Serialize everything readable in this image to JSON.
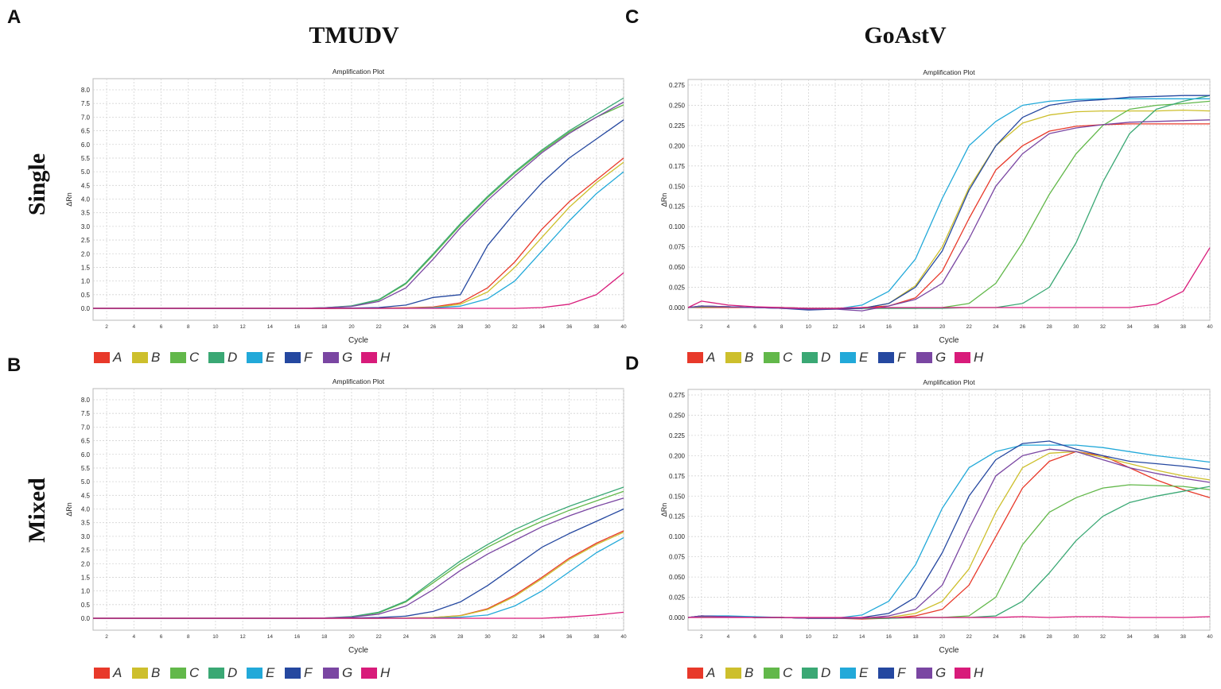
{
  "figure": {
    "panel_letters": [
      "A",
      "B",
      "C",
      "D"
    ],
    "column_titles": [
      "TMUDV",
      "GoAstV"
    ],
    "row_labels": [
      "Single",
      "Mixed"
    ]
  },
  "series_colors": {
    "A": "#e8392a",
    "B": "#cdbf2c",
    "C": "#62b84a",
    "D": "#3aa874",
    "E": "#22a9d9",
    "F": "#2548a0",
    "G": "#7a46a2",
    "H": "#d81b7a"
  },
  "chart_data": [
    {
      "panel": "A",
      "type": "line",
      "title": "Amplification Plot",
      "xlabel": "Cycle",
      "ylabel": "ΔRn",
      "xlim": [
        1,
        40
      ],
      "ylim": [
        -0.45,
        8.4
      ],
      "grid": true,
      "legend": "bottom",
      "xticks": [
        "2",
        "4",
        "6",
        "8",
        "10",
        "12",
        "14",
        "16",
        "18",
        "20",
        "22",
        "24",
        "26",
        "28",
        "30",
        "32",
        "34",
        "36",
        "38",
        "40"
      ],
      "yticks": [
        "0.0",
        "0.5",
        "1.0",
        "1.5",
        "2.0",
        "2.5",
        "3.0",
        "3.5",
        "4.0",
        "4.5",
        "5.0",
        "5.5",
        "6.0",
        "6.5",
        "7.0",
        "7.5",
        "8.0"
      ],
      "x": [
        2,
        4,
        6,
        8,
        10,
        12,
        14,
        16,
        18,
        20,
        22,
        24,
        26,
        28,
        30,
        32,
        34,
        36,
        38,
        40
      ],
      "series": [
        {
          "name": "A",
          "values": [
            0,
            0,
            0,
            0,
            0,
            0,
            0,
            0,
            -0.01,
            0,
            0.01,
            0.02,
            0.05,
            0.2,
            0.75,
            1.7,
            2.9,
            3.9,
            4.7,
            5.5
          ]
        },
        {
          "name": "B",
          "values": [
            0,
            0,
            0,
            0,
            0,
            0,
            0,
            0,
            0,
            0,
            0,
            0.01,
            0.03,
            0.15,
            0.6,
            1.5,
            2.6,
            3.7,
            4.6,
            5.35
          ]
        },
        {
          "name": "C",
          "values": [
            0,
            0,
            0,
            0,
            0,
            0,
            0,
            0,
            0.02,
            0.08,
            0.3,
            0.9,
            1.95,
            3.05,
            4.05,
            4.95,
            5.75,
            6.45,
            7.0,
            7.45
          ]
        },
        {
          "name": "D",
          "values": [
            0,
            0,
            0,
            0,
            0,
            0,
            0,
            0,
            0.02,
            0.09,
            0.32,
            0.93,
            2.0,
            3.1,
            4.1,
            5.0,
            5.8,
            6.5,
            7.1,
            7.7
          ]
        },
        {
          "name": "E",
          "values": [
            0,
            0,
            0,
            0,
            0,
            0,
            0,
            0,
            0,
            0,
            0,
            0,
            0.02,
            0.08,
            0.35,
            1.0,
            2.1,
            3.2,
            4.2,
            5.0
          ]
        },
        {
          "name": "F",
          "values": [
            0,
            0,
            0,
            0,
            0,
            0,
            0,
            0,
            0,
            0.01,
            0.03,
            0.12,
            0.4,
            0.5,
            2.3,
            3.5,
            4.6,
            5.5,
            6.2,
            6.9
          ]
        },
        {
          "name": "G",
          "values": [
            0,
            0,
            0,
            0,
            0,
            0,
            0,
            0,
            0.02,
            0.07,
            0.25,
            0.75,
            1.8,
            2.95,
            3.95,
            4.85,
            5.7,
            6.4,
            7.0,
            7.55
          ]
        },
        {
          "name": "H",
          "values": [
            0,
            0,
            0,
            0,
            0,
            0,
            0,
            0,
            0,
            0,
            0,
            0,
            0,
            0,
            0,
            0,
            0.03,
            0.15,
            0.5,
            1.3
          ]
        }
      ]
    },
    {
      "panel": "B",
      "type": "line",
      "title": "Amplification Plot",
      "xlabel": "Cycle",
      "ylabel": "ΔRn",
      "xlim": [
        1,
        40
      ],
      "ylim": [
        -0.45,
        8.4
      ],
      "grid": true,
      "legend": "bottom",
      "xticks": [
        "2",
        "4",
        "6",
        "8",
        "10",
        "12",
        "14",
        "16",
        "18",
        "20",
        "22",
        "24",
        "26",
        "28",
        "30",
        "32",
        "34",
        "36",
        "38",
        "40"
      ],
      "yticks": [
        "0.0",
        "0.5",
        "1.0",
        "1.5",
        "2.0",
        "2.5",
        "3.0",
        "3.5",
        "4.0",
        "4.5",
        "5.0",
        "5.5",
        "6.0",
        "6.5",
        "7.0",
        "7.5",
        "8.0"
      ],
      "x": [
        2,
        4,
        6,
        8,
        10,
        12,
        14,
        16,
        18,
        20,
        22,
        24,
        26,
        28,
        30,
        32,
        34,
        36,
        38,
        40
      ],
      "series": [
        {
          "name": "A",
          "values": [
            0,
            0,
            0,
            0,
            0,
            0,
            0,
            0,
            0,
            0,
            0,
            0.01,
            0.03,
            0.1,
            0.35,
            0.85,
            1.5,
            2.2,
            2.75,
            3.2
          ]
        },
        {
          "name": "B",
          "values": [
            0,
            0,
            0,
            0,
            0,
            0,
            0,
            0,
            0,
            0,
            0,
            0.01,
            0.03,
            0.09,
            0.32,
            0.8,
            1.45,
            2.15,
            2.7,
            3.15
          ]
        },
        {
          "name": "C",
          "values": [
            0,
            0,
            0,
            0,
            0,
            0,
            0,
            0,
            0.01,
            0.05,
            0.2,
            0.6,
            1.3,
            2.0,
            2.6,
            3.1,
            3.55,
            3.95,
            4.3,
            4.65
          ]
        },
        {
          "name": "D",
          "values": [
            0,
            0,
            0,
            0,
            0,
            0,
            0,
            0,
            0.01,
            0.06,
            0.22,
            0.63,
            1.38,
            2.1,
            2.7,
            3.25,
            3.7,
            4.1,
            4.45,
            4.8
          ]
        },
        {
          "name": "E",
          "values": [
            0,
            0,
            0,
            0,
            0,
            0,
            0,
            0,
            0,
            0,
            0,
            0,
            0.01,
            0.04,
            0.12,
            0.45,
            1.0,
            1.7,
            2.4,
            2.95
          ]
        },
        {
          "name": "F",
          "values": [
            0,
            0,
            0,
            0,
            0,
            0,
            0,
            0,
            0,
            0.01,
            0.03,
            0.08,
            0.25,
            0.6,
            1.2,
            1.9,
            2.6,
            3.1,
            3.55,
            4.0
          ]
        },
        {
          "name": "G",
          "values": [
            0,
            0,
            0,
            0,
            0,
            0,
            0,
            0,
            0.01,
            0.04,
            0.15,
            0.45,
            1.05,
            1.75,
            2.35,
            2.85,
            3.35,
            3.75,
            4.1,
            4.4
          ]
        },
        {
          "name": "H",
          "values": [
            0,
            0,
            0,
            0,
            0,
            0,
            0,
            0,
            0,
            0,
            0,
            0,
            0,
            0,
            0,
            0,
            0,
            0.05,
            0.12,
            0.22
          ]
        }
      ]
    },
    {
      "panel": "C",
      "type": "line",
      "title": "Amplification Plot",
      "xlabel": "Cycle",
      "ylabel": "ΔRn",
      "xlim": [
        1,
        40
      ],
      "ylim": [
        -0.016,
        0.282
      ],
      "grid": true,
      "legend": "bottom",
      "xticks": [
        "2",
        "4",
        "6",
        "8",
        "10",
        "12",
        "14",
        "16",
        "18",
        "20",
        "22",
        "24",
        "26",
        "28",
        "30",
        "32",
        "34",
        "36",
        "38",
        "40"
      ],
      "yticks": [
        "0.000",
        "0.025",
        "0.050",
        "0.075",
        "0.100",
        "0.125",
        "0.150",
        "0.175",
        "0.200",
        "0.225",
        "0.250",
        "0.275"
      ],
      "x": [
        2,
        4,
        6,
        8,
        10,
        12,
        14,
        16,
        18,
        20,
        22,
        24,
        26,
        28,
        30,
        32,
        34,
        36,
        38,
        40
      ],
      "series": [
        {
          "name": "A",
          "values": [
            0,
            0,
            0,
            0,
            -0.001,
            -0.001,
            0,
            0.002,
            0.012,
            0.045,
            0.11,
            0.17,
            0.2,
            0.218,
            0.224,
            0.226,
            0.227,
            0.227,
            0.227,
            0.227
          ]
        },
        {
          "name": "B",
          "values": [
            0.002,
            0.001,
            0,
            -0.001,
            -0.002,
            -0.002,
            -0.001,
            0.005,
            0.027,
            0.075,
            0.148,
            0.2,
            0.228,
            0.238,
            0.242,
            0.243,
            0.243,
            0.243,
            0.244,
            0.243
          ]
        },
        {
          "name": "C",
          "values": [
            0.001,
            0.001,
            0,
            0,
            -0.001,
            -0.001,
            -0.001,
            -0.001,
            -0.001,
            0,
            0.005,
            0.03,
            0.08,
            0.14,
            0.19,
            0.225,
            0.245,
            0.25,
            0.252,
            0.255
          ]
        },
        {
          "name": "D",
          "values": [
            0.001,
            0.001,
            0,
            0,
            -0.001,
            -0.001,
            -0.001,
            -0.001,
            -0.001,
            -0.001,
            0,
            0,
            0.005,
            0.025,
            0.08,
            0.155,
            0.215,
            0.245,
            0.255,
            0.262
          ]
        },
        {
          "name": "E",
          "values": [
            0.002,
            0.001,
            0,
            -0.001,
            -0.002,
            -0.002,
            0.003,
            0.02,
            0.06,
            0.135,
            0.2,
            0.23,
            0.25,
            0.255,
            0.257,
            0.258,
            0.258,
            0.258,
            0.258,
            0.258
          ]
        },
        {
          "name": "F",
          "values": [
            0.002,
            0.001,
            0,
            -0.001,
            -0.003,
            -0.002,
            -0.001,
            0.005,
            0.025,
            0.07,
            0.145,
            0.2,
            0.235,
            0.25,
            0.255,
            0.257,
            0.26,
            0.261,
            0.262,
            0.262
          ]
        },
        {
          "name": "G",
          "values": [
            0.002,
            0.001,
            0,
            -0.001,
            -0.002,
            -0.002,
            -0.004,
            0.002,
            0.01,
            0.03,
            0.085,
            0.15,
            0.19,
            0.215,
            0.222,
            0.226,
            0.229,
            0.23,
            0.231,
            0.232
          ]
        },
        {
          "name": "H",
          "values": [
            0.008,
            0.003,
            0.001,
            0,
            -0.001,
            -0.001,
            0,
            0,
            0,
            0,
            0,
            0,
            0,
            0,
            0,
            0,
            0,
            0.004,
            0.02,
            0.074
          ]
        }
      ]
    },
    {
      "panel": "D",
      "type": "line",
      "title": "Amplification Plot",
      "xlabel": "Cycle",
      "ylabel": "ΔRn",
      "xlim": [
        1,
        40
      ],
      "ylim": [
        -0.016,
        0.282
      ],
      "grid": true,
      "legend": "bottom",
      "xticks": [
        "2",
        "4",
        "6",
        "8",
        "10",
        "12",
        "14",
        "16",
        "18",
        "20",
        "22",
        "24",
        "26",
        "28",
        "30",
        "32",
        "34",
        "36",
        "38",
        "40"
      ],
      "yticks": [
        "0.000",
        "0.025",
        "0.050",
        "0.075",
        "0.100",
        "0.125",
        "0.150",
        "0.175",
        "0.200",
        "0.225",
        "0.250",
        "0.275"
      ],
      "x": [
        2,
        4,
        6,
        8,
        10,
        12,
        14,
        16,
        18,
        20,
        22,
        24,
        26,
        28,
        30,
        32,
        34,
        36,
        38,
        40
      ],
      "series": [
        {
          "name": "A",
          "values": [
            0.002,
            0.001,
            0,
            0,
            -0.001,
            -0.001,
            -0.002,
            -0.001,
            0.002,
            0.01,
            0.04,
            0.1,
            0.16,
            0.193,
            0.205,
            0.2,
            0.185,
            0.17,
            0.158,
            0.148
          ]
        },
        {
          "name": "B",
          "values": [
            0.002,
            0.001,
            0,
            0,
            -0.001,
            -0.001,
            -0.001,
            0,
            0.005,
            0.02,
            0.06,
            0.13,
            0.185,
            0.203,
            0.205,
            0.198,
            0.19,
            0.182,
            0.175,
            0.17
          ]
        },
        {
          "name": "C",
          "values": [
            0.001,
            0.001,
            0,
            0,
            -0.001,
            -0.001,
            -0.001,
            -0.001,
            0,
            0,
            0.002,
            0.025,
            0.09,
            0.13,
            0.148,
            0.16,
            0.164,
            0.163,
            0.162,
            0.158
          ]
        },
        {
          "name": "D",
          "values": [
            0.001,
            0.001,
            0,
            0,
            -0.001,
            -0.001,
            -0.001,
            -0.001,
            0,
            0,
            0,
            0.002,
            0.02,
            0.055,
            0.095,
            0.125,
            0.142,
            0.15,
            0.156,
            0.162
          ]
        },
        {
          "name": "E",
          "values": [
            0.002,
            0.002,
            0.001,
            0,
            -0.001,
            -0.001,
            0.003,
            0.02,
            0.065,
            0.135,
            0.185,
            0.205,
            0.213,
            0.213,
            0.213,
            0.21,
            0.205,
            0.2,
            0.196,
            0.192
          ]
        },
        {
          "name": "F",
          "values": [
            0.002,
            0.001,
            0,
            0,
            -0.001,
            -0.001,
            0,
            0.005,
            0.025,
            0.08,
            0.15,
            0.195,
            0.215,
            0.218,
            0.208,
            0.2,
            0.193,
            0.19,
            0.187,
            0.183
          ]
        },
        {
          "name": "G",
          "values": [
            0.002,
            0.001,
            0,
            0,
            -0.001,
            -0.001,
            -0.001,
            0.002,
            0.01,
            0.04,
            0.11,
            0.175,
            0.2,
            0.208,
            0.205,
            0.195,
            0.185,
            0.178,
            0.172,
            0.167
          ]
        },
        {
          "name": "H",
          "values": [
            0,
            0,
            0,
            0,
            0,
            0,
            0,
            0,
            0,
            0,
            0,
            0,
            0.001,
            0,
            0.001,
            0.001,
            0,
            0,
            0,
            0.001
          ]
        }
      ]
    }
  ]
}
